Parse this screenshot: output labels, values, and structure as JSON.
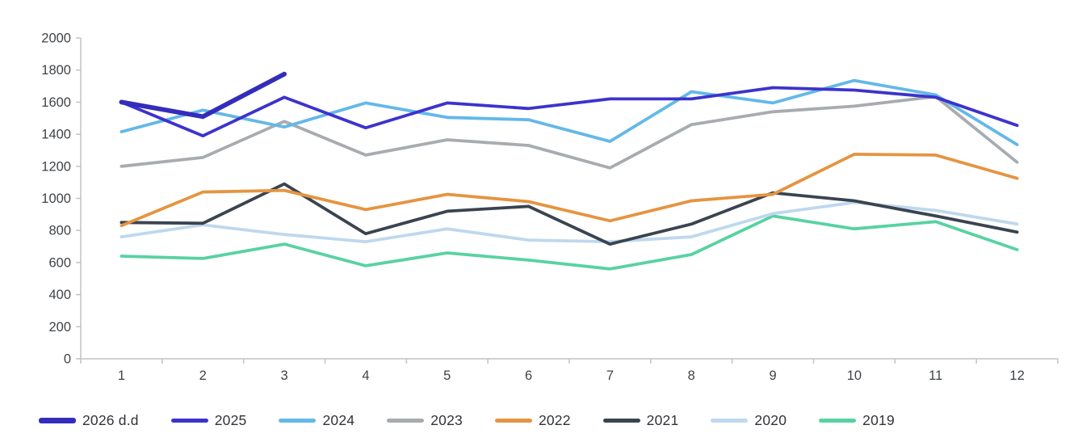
{
  "chart_data": {
    "type": "line",
    "title": "",
    "xlabel": "",
    "ylabel": "",
    "x_categories": [
      "1",
      "2",
      "3",
      "4",
      "5",
      "6",
      "7",
      "8",
      "9",
      "10",
      "11",
      "12"
    ],
    "ylim": [
      0,
      2000
    ],
    "ytick_step": 200,
    "ytick_labels": [
      "0",
      "200",
      "400",
      "600",
      "800",
      "1000",
      "1200",
      "1400",
      "1600",
      "1800",
      "2000"
    ],
    "grid": false,
    "legend_position": "bottom",
    "axis_color": "#bfc3c7",
    "tick_label_color": "#3f4347",
    "series": [
      {
        "name": "2026 d.d",
        "color": "#342cba",
        "thick": true,
        "values": [
          1600,
          1510,
          1775,
          null,
          null,
          null,
          null,
          null,
          null,
          null,
          null,
          null
        ]
      },
      {
        "name": "2025",
        "color": "#3c33cd",
        "thick": false,
        "values": [
          1600,
          1390,
          1630,
          1440,
          1595,
          1560,
          1620,
          1620,
          1690,
          1675,
          1630,
          1455
        ]
      },
      {
        "name": "2024",
        "color": "#63b8e8",
        "thick": false,
        "values": [
          1415,
          1550,
          1445,
          1595,
          1505,
          1490,
          1355,
          1665,
          1595,
          1735,
          1645,
          1335
        ]
      },
      {
        "name": "2023",
        "color": "#a8abaf",
        "thick": false,
        "values": [
          1200,
          1255,
          1480,
          1270,
          1365,
          1330,
          1190,
          1460,
          1540,
          1575,
          1635,
          1225
        ]
      },
      {
        "name": "2022",
        "color": "#e59440",
        "thick": false,
        "values": [
          830,
          1040,
          1050,
          930,
          1025,
          980,
          860,
          985,
          1025,
          1275,
          1270,
          1125
        ]
      },
      {
        "name": "2021",
        "color": "#3a4450",
        "thick": false,
        "values": [
          850,
          845,
          1090,
          780,
          920,
          950,
          715,
          840,
          1035,
          985,
          890,
          790
        ]
      },
      {
        "name": "2020",
        "color": "#bed8ee",
        "thick": false,
        "values": [
          760,
          835,
          775,
          730,
          810,
          740,
          730,
          760,
          905,
          975,
          925,
          840
        ]
      },
      {
        "name": "2019",
        "color": "#58d2a2",
        "thick": false,
        "values": [
          640,
          625,
          715,
          580,
          660,
          615,
          560,
          650,
          890,
          810,
          855,
          680
        ]
      }
    ]
  }
}
